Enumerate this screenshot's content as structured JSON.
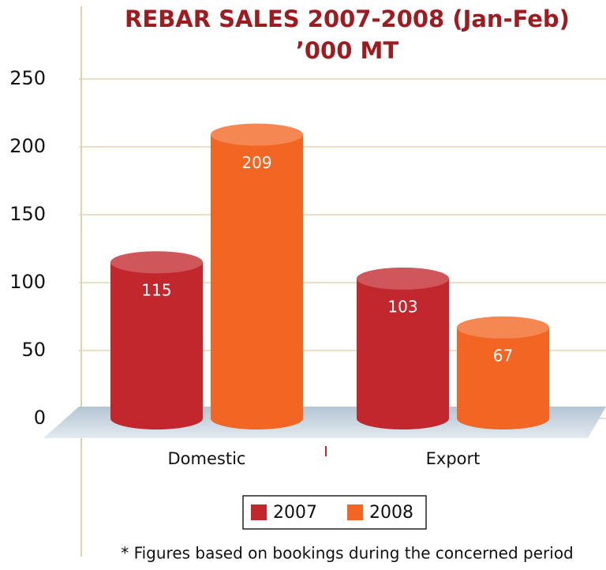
{
  "chart_data": {
    "type": "bar",
    "title": "REBAR SALES 2007-2008  (Jan-Feb)",
    "subtitle": "’000 MT",
    "categories": [
      "Domestic",
      "Export"
    ],
    "series": [
      {
        "name": "2007",
        "color": "#c1272d",
        "values": [
          115,
          103
        ]
      },
      {
        "name": "2008",
        "color": "#f26522",
        "values": [
          209,
          67
        ]
      }
    ],
    "ylim": [
      0,
      250
    ],
    "yticks": [
      0,
      50,
      100,
      150,
      200,
      250
    ],
    "grid": true,
    "legend": "bottom",
    "footnote": "* Figures based on bookings during the concerned period"
  }
}
